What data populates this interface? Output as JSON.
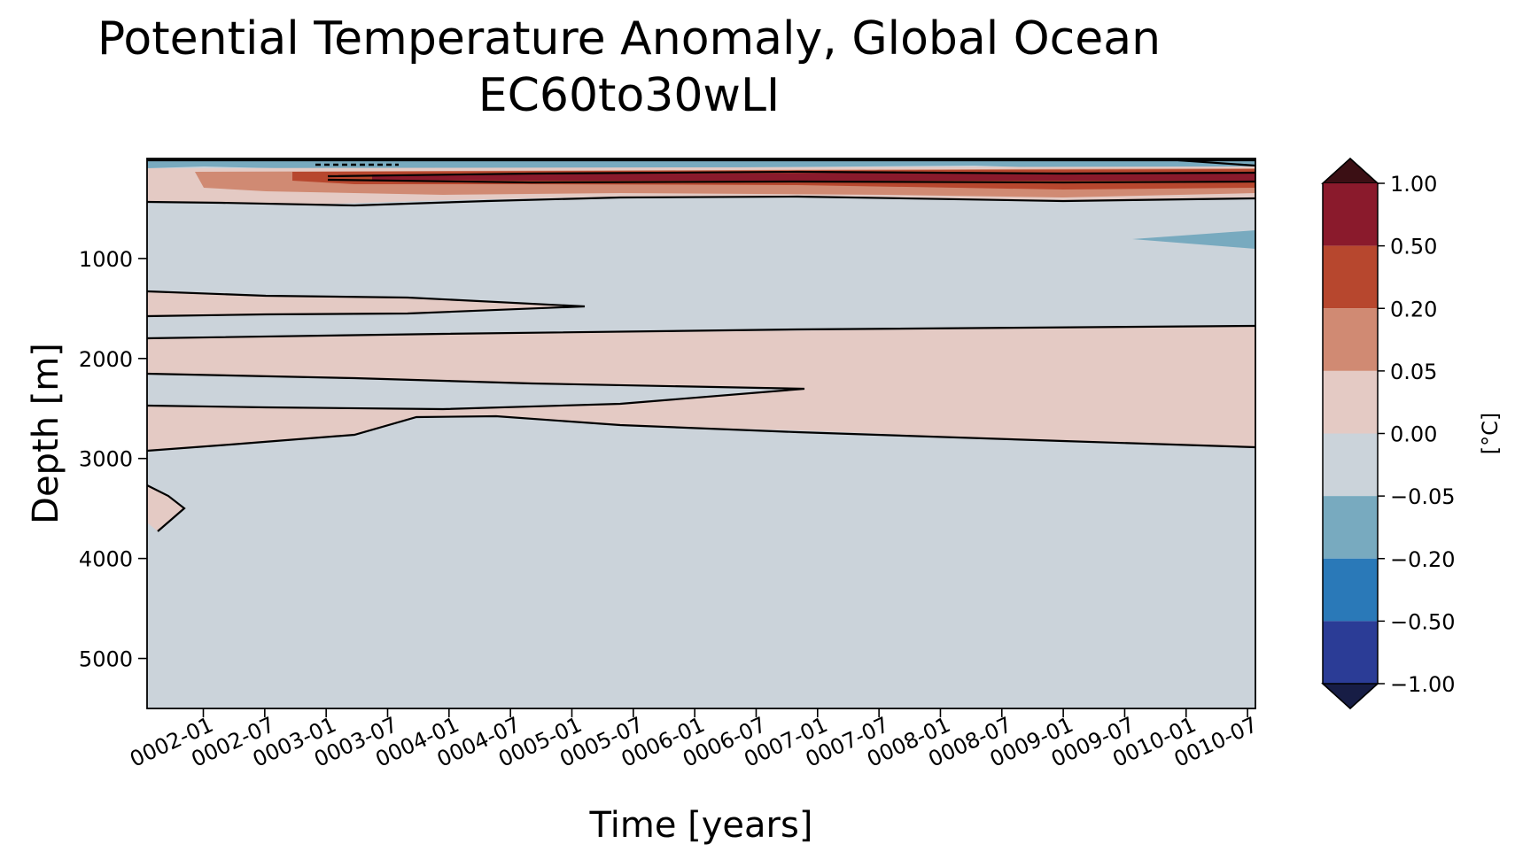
{
  "chart_data": {
    "type": "heatmap",
    "subtype": "filled-contour",
    "title": "Potential Temperature Anomaly, Global Ocean",
    "subtitle": "EC60to30wLI",
    "xlabel": "Time [years]",
    "ylabel": "Depth [m]",
    "x_ticks": [
      "0002-01",
      "0002-07",
      "0003-01",
      "0003-07",
      "0004-01",
      "0004-07",
      "0005-01",
      "0005-07",
      "0006-01",
      "0006-07",
      "0007-01",
      "0007-07",
      "0008-01",
      "0008-07",
      "0009-01",
      "0009-07",
      "0010-01",
      "0010-07"
    ],
    "y_ticks": [
      1000,
      2000,
      3000,
      4000,
      5000
    ],
    "ylim": [
      5500,
      0
    ],
    "colorbar": {
      "label": "[°C]",
      "levels": [
        "1.00",
        "0.50",
        "0.20",
        "0.05",
        "0.00",
        "−0.05",
        "−0.20",
        "−0.50",
        "−1.00"
      ],
      "colors": [
        "#3b0f14",
        "#8a1a2c",
        "#b7472e",
        "#d08a73",
        "#e4cac4",
        "#cbd3da",
        "#78aabf",
        "#2a79b8",
        "#2b3c96",
        "#171d45"
      ]
    },
    "regions": [
      {
        "name": "warm-surface-band",
        "depth_range_m": [
          100,
          400
        ],
        "anomaly": "0.05 to 0.50"
      },
      {
        "name": "cool-near-surface",
        "depth_range_m": [
          0,
          100
        ],
        "anomaly": "-0.05 to -0.20"
      },
      {
        "name": "warm-tongue-1500m",
        "depth_range_m": [
          1400,
          1550
        ],
        "anomaly": "0.00 to 0.05"
      },
      {
        "name": "warm-layer-2000-2900m",
        "depth_range_m": [
          1700,
          2900
        ],
        "anomaly": "0.00 to 0.05"
      },
      {
        "name": "cool-patch-800m",
        "depth_range_m": [
          700,
          900
        ],
        "anomaly": "-0.05 to -0.20"
      },
      {
        "name": "deep-ocean",
        "depth_range_m": [
          2900,
          5500
        ],
        "anomaly": "-0.05 to 0.00"
      }
    ]
  }
}
